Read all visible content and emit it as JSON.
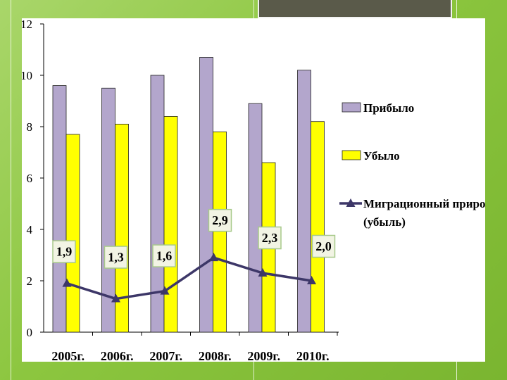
{
  "chart_data": {
    "type": "bar",
    "categories": [
      "2005г.",
      "2006г.",
      "2007г.",
      "2008г.",
      "2009г.",
      "2010г."
    ],
    "series": [
      {
        "name": "Прибыло",
        "kind": "bar",
        "color": "#b3a6cc",
        "values": [
          9.6,
          9.5,
          10.0,
          10.7,
          8.9,
          10.2
        ]
      },
      {
        "name": "Убыло",
        "kind": "bar",
        "color": "#ffff00",
        "values": [
          7.7,
          8.1,
          8.4,
          7.8,
          6.6,
          8.2
        ]
      },
      {
        "name": "Миграционный прирост",
        "name_line2": "(убыль)",
        "kind": "line",
        "color": "#3d3768",
        "values": [
          1.9,
          1.3,
          1.6,
          2.9,
          2.3,
          2.0
        ],
        "labels": [
          "1,9",
          "1,3",
          "1,6",
          "2,9",
          "2,3",
          "2,0"
        ]
      }
    ],
    "y_ticks": [
      "0",
      "2",
      "4",
      "6",
      "8",
      "10",
      "12"
    ],
    "ylim": [
      0,
      12
    ],
    "legend_position": "right",
    "grid": false
  }
}
